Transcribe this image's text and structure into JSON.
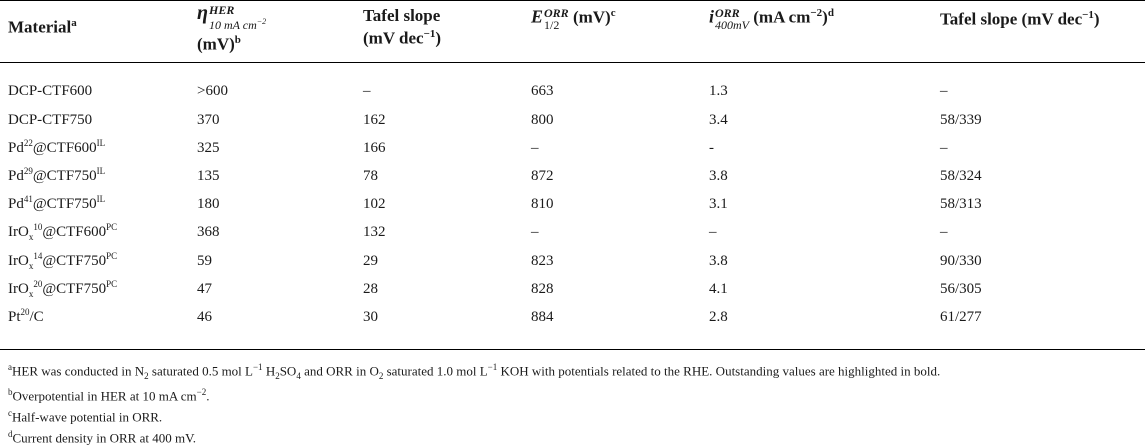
{
  "table": {
    "headers": {
      "material": "Material",
      "material_sup": "a",
      "eta_symbol": "η",
      "eta_sup": "HER",
      "eta_sub": "10 mA cm",
      "eta_sub_exp": "−2",
      "eta_unit": "(mV)",
      "eta_unit_sup": "b",
      "tafel1_line1": "Tafel slope",
      "tafel1_line2": "(mV dec",
      "tafel1_exp": "−1",
      "tafel1_close": ")",
      "e_symbol": "E",
      "e_sup": "ORR",
      "e_sub": "1/2",
      "e_unit": " (mV)",
      "e_unit_sup": "c",
      "i_symbol": "i",
      "i_sup": "ORR",
      "i_sub": "400mV",
      "i_unit": " (mA cm",
      "i_unit_exp": "−2",
      "i_unit_close": ")",
      "i_unit_sup": "d",
      "tafel2": "Tafel slope (mV dec",
      "tafel2_exp": "−1",
      "tafel2_close": ")"
    },
    "rows": [
      {
        "mat": "DCP-CTF600",
        "eta": ">600",
        "tafel": "–",
        "e12": "663",
        "i400": "1.3",
        "tafel2": "–"
      },
      {
        "mat": "DCP-CTF750",
        "eta": "370",
        "tafel": "162",
        "e12": "800",
        "i400": "3.4",
        "tafel2": "58/339"
      },
      {
        "mat_pre": "Pd",
        "mat_sup": "22",
        "mat_mid": "@CTF600",
        "mat_sup2": "IL",
        "eta": "325",
        "tafel": "166",
        "e12": "–",
        "i400": "-",
        "tafel2": "–"
      },
      {
        "mat_pre": "Pd",
        "mat_sup": "29",
        "mat_mid": "@CTF750",
        "mat_sup2": "IL",
        "eta": "135",
        "tafel": "78",
        "e12": "872",
        "i400": "3.8",
        "tafel2": "58/324"
      },
      {
        "mat_pre": "Pd",
        "mat_sup": "41",
        "mat_mid": "@CTF750",
        "mat_sup2": "IL",
        "eta": "180",
        "tafel": "102",
        "e12": "810",
        "i400": "3.1",
        "tafel2": "58/313"
      },
      {
        "mat_pre": "IrO",
        "mat_sub": "x",
        "mat_sup": "10",
        "mat_mid": "@CTF600",
        "mat_sup2": "PC",
        "eta": "368",
        "tafel": "132",
        "e12": "–",
        "i400": "–",
        "tafel2": "–"
      },
      {
        "mat_pre": "IrO",
        "mat_sub": "x",
        "mat_sup": "14",
        "mat_mid": "@CTF750",
        "mat_sup2": "PC",
        "eta": "59",
        "tafel": "29",
        "e12": "823",
        "i400": "3.8",
        "tafel2": "90/330"
      },
      {
        "mat_pre": "IrO",
        "mat_sub": "x",
        "mat_sup": "20",
        "mat_mid": "@CTF750",
        "mat_sup2": "PC",
        "eta": "47",
        "tafel": "28",
        "e12": "828",
        "i400": "4.1",
        "tafel2": "56/305"
      },
      {
        "mat_pre": "Pt",
        "mat_sup": "20",
        "mat_mid": "/C",
        "eta": "46",
        "tafel": "30",
        "e12": "884",
        "i400": "2.8",
        "tafel2": "61/277"
      }
    ]
  },
  "notes": {
    "a_mark": "a",
    "a_1": "HER was conducted in N",
    "a_2": "2",
    "a_3": " saturated 0.5 mol L",
    "a_4": "−1",
    "a_5": " H",
    "a_6": "2",
    "a_7": "SO",
    "a_8": "4",
    "a_9": " and ORR in O",
    "a_10": "2",
    "a_11": " saturated 1.0 mol L",
    "a_12": "−1",
    "a_13": " KOH with potentials related to the RHE. Outstanding values are highlighted in bold.",
    "b_mark": "b",
    "b_1": "Overpotential in HER at 10 mA cm",
    "b_2": "−2",
    "b_3": ".",
    "c_mark": "c",
    "c_1": "Half-wave potential in ORR.",
    "d_mark": "d",
    "d_1": "Current density in ORR at 400 mV."
  }
}
